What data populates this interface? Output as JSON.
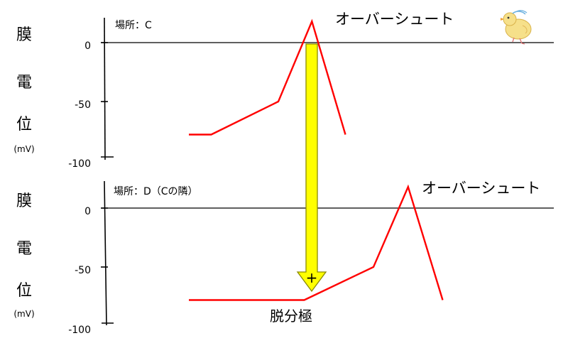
{
  "ylabel_chars": [
    "膜",
    "電",
    "位"
  ],
  "ylabel_unit": "(mV)",
  "arrow_label": "脱分極",
  "arrow_symbol": "+",
  "colors": {
    "trace": "#ff0000",
    "arrow_fill": "#ffff00",
    "arrow_stroke": "#8a8a00"
  },
  "mascot": "chick-doodle-icon",
  "chart_data": [
    {
      "type": "line",
      "panel": "top",
      "location_label": "場所：C",
      "annotation": "オーバーシュート",
      "y_ticks": [
        "0",
        "-50",
        "-100"
      ],
      "ylim": [
        -100,
        20
      ],
      "x": [
        0,
        1,
        4,
        5.5,
        7
      ],
      "y": [
        -78,
        -78,
        -50,
        18,
        -78
      ]
    },
    {
      "type": "line",
      "panel": "bottom",
      "location_label": "場所：D（Cの隣）",
      "annotation": "オーバーシュート",
      "y_ticks": [
        "0",
        "-50",
        "-100"
      ],
      "ylim": [
        -100,
        20
      ],
      "x": [
        0,
        5,
        8,
        9.5,
        11
      ],
      "y": [
        -78,
        -78,
        -50,
        18,
        -78
      ]
    }
  ]
}
